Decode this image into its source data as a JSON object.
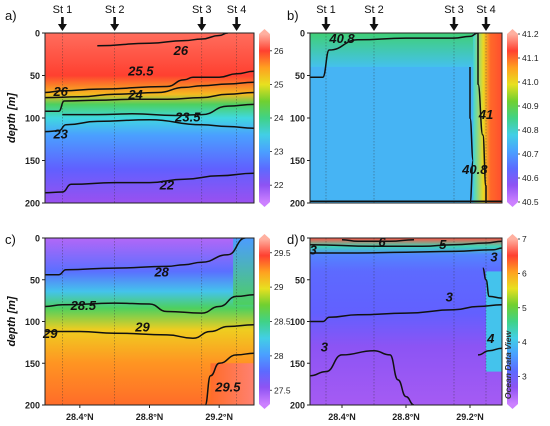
{
  "figure": {
    "watermark": "Ocean Data View",
    "colors": {
      "frame": "#222222",
      "station_line": "#333333",
      "contour": "#111111"
    }
  },
  "chart_data": [
    {
      "id": "a",
      "type": "heatmap",
      "panel_label": "a)",
      "ylabel": "depth [m]",
      "ylim": [
        200,
        0
      ],
      "yticks": [
        0,
        50,
        100,
        150,
        200
      ],
      "xlim": [
        28.2,
        29.4
      ],
      "xticks": [],
      "stations": [
        {
          "name": "St 1",
          "lat": 28.3
        },
        {
          "name": "St 2",
          "lat": 28.6
        },
        {
          "name": "St 3",
          "lat": 29.1
        },
        {
          "name": "St 4",
          "lat": 29.3
        }
      ],
      "colorbar": {
        "min": 21.5,
        "max": 26.5,
        "ticks": [
          22,
          23,
          24,
          25,
          26
        ]
      },
      "contours": [
        {
          "level": 26,
          "label": "26",
          "points": [
            [
              28.2,
              70
            ],
            [
              28.3,
              68
            ],
            [
              28.5,
              66
            ],
            [
              28.9,
              63
            ],
            [
              29.0,
              55
            ],
            [
              29.05,
              52
            ],
            [
              29.2,
              52
            ],
            [
              29.3,
              48
            ],
            [
              29.4,
              45
            ]
          ]
        },
        {
          "level": 26,
          "label": "",
          "points": [
            [
              28.5,
              15
            ],
            [
              28.8,
              12
            ],
            [
              29.0,
              9
            ],
            [
              29.1,
              7
            ],
            [
              29.2,
              3
            ],
            [
              29.25,
              0
            ]
          ]
        },
        {
          "level": 25.5,
          "label": "25.5",
          "points": [
            [
              28.2,
              76
            ],
            [
              28.4,
              75
            ],
            [
              28.6,
              72
            ],
            [
              28.85,
              70
            ],
            [
              29.0,
              64
            ],
            [
              29.1,
              62
            ],
            [
              29.25,
              60
            ],
            [
              29.4,
              58
            ]
          ]
        },
        {
          "level": 24,
          "label": "24",
          "points": [
            [
              28.2,
              92
            ],
            [
              28.28,
              92
            ],
            [
              28.31,
              80
            ],
            [
              28.5,
              79
            ],
            [
              28.7,
              78
            ],
            [
              28.9,
              78
            ],
            [
              29.1,
              76
            ],
            [
              29.25,
              72
            ],
            [
              29.4,
              70
            ]
          ]
        },
        {
          "level": 23.5,
          "label": "23.5",
          "points": [
            [
              28.3,
              96
            ],
            [
              28.5,
              96
            ],
            [
              28.7,
              95
            ],
            [
              28.95,
              97
            ],
            [
              29.1,
              96
            ],
            [
              29.25,
              86
            ],
            [
              29.4,
              84
            ]
          ]
        },
        {
          "level": 23,
          "label": "23",
          "points": [
            [
              28.2,
              116
            ],
            [
              28.28,
              115
            ],
            [
              28.32,
              108
            ],
            [
              28.5,
              104
            ],
            [
              28.8,
              102
            ],
            [
              29.1,
              108
            ],
            [
              29.25,
              110
            ],
            [
              29.4,
              112
            ]
          ]
        },
        {
          "level": 22,
          "label": "22",
          "points": [
            [
              28.2,
              188
            ],
            [
              28.3,
              187
            ],
            [
              28.35,
              178
            ],
            [
              28.6,
              176
            ],
            [
              28.8,
              176
            ],
            [
              29.0,
              172
            ],
            [
              29.2,
              168
            ],
            [
              29.4,
              165
            ]
          ]
        }
      ],
      "labels": [
        {
          "text": "26",
          "lat": 28.98,
          "depth": 20
        },
        {
          "text": "25.5",
          "lat": 28.75,
          "depth": 44
        },
        {
          "text": "26",
          "lat": 28.29,
          "depth": 68
        },
        {
          "text": "24",
          "lat": 28.72,
          "depth": 72
        },
        {
          "text": "23.5",
          "lat": 29.02,
          "depth": 98
        },
        {
          "text": "23",
          "lat": 28.29,
          "depth": 118
        },
        {
          "text": "22",
          "lat": 28.9,
          "depth": 178
        }
      ]
    },
    {
      "id": "b",
      "type": "heatmap",
      "panel_label": "b)",
      "ylabel": "",
      "ylim": [
        200,
        0
      ],
      "yticks": [
        0,
        50,
        100,
        150,
        200
      ],
      "xlim": [
        28.2,
        29.4
      ],
      "xticks": [],
      "stations": [
        {
          "name": "St 1",
          "lat": 28.3
        },
        {
          "name": "St 2",
          "lat": 28.6
        },
        {
          "name": "St 3",
          "lat": 29.1
        },
        {
          "name": "St 4",
          "lat": 29.3
        }
      ],
      "colorbar": {
        "min": 40.5,
        "max": 41.2,
        "ticks": [
          40.5,
          40.6,
          40.7,
          40.8,
          40.9,
          41.0,
          41.1,
          41.2
        ]
      },
      "contours": [
        {
          "level": 40.8,
          "label": "40.8",
          "points": [
            [
              28.2,
              52
            ],
            [
              28.28,
              52
            ],
            [
              28.32,
              20
            ],
            [
              28.5,
              8
            ],
            [
              28.8,
              6
            ],
            [
              29.1,
              6
            ],
            [
              29.2,
              4
            ],
            [
              29.25,
              0
            ]
          ]
        },
        {
          "level": 41,
          "label": "41",
          "points": [
            [
              29.25,
              0
            ],
            [
              29.25,
              60
            ],
            [
              29.28,
              120
            ],
            [
              29.3,
              180
            ],
            [
              29.3,
              200
            ]
          ]
        },
        {
          "level": 40.8,
          "label": "40.8",
          "points": [
            [
              29.2,
              40
            ],
            [
              29.2,
              100
            ],
            [
              29.22,
              150
            ],
            [
              29.2,
              200
            ]
          ]
        },
        {
          "level": 40.8,
          "label": "",
          "points": [
            [
              28.2,
              198
            ],
            [
              29.4,
              198
            ]
          ]
        }
      ],
      "labels": [
        {
          "text": "40.8",
          "lat": 28.4,
          "depth": 6
        },
        {
          "text": "41",
          "lat": 29.3,
          "depth": 95
        },
        {
          "text": "40.8",
          "lat": 29.23,
          "depth": 160
        }
      ]
    },
    {
      "id": "c",
      "type": "heatmap",
      "panel_label": "c)",
      "ylabel": "depth [m]",
      "ylim": [
        200,
        0
      ],
      "yticks": [
        0,
        50,
        100,
        150,
        200
      ],
      "xlim": [
        28.2,
        29.4
      ],
      "xticks": [
        "28.4°N",
        "28.8°N",
        "29.2°N"
      ],
      "xtick_values": [
        28.4,
        28.8,
        29.2
      ],
      "stations": [],
      "colorbar": {
        "min": 27.3,
        "max": 29.7,
        "ticks": [
          27.5,
          28,
          28.5,
          29,
          29.5
        ]
      },
      "contours": [
        {
          "level": 28,
          "label": "28",
          "points": [
            [
              28.2,
              44
            ],
            [
              28.28,
              44
            ],
            [
              28.32,
              38
            ],
            [
              28.6,
              36
            ],
            [
              28.9,
              34
            ],
            [
              29.0,
              32
            ],
            [
              29.1,
              29
            ],
            [
              29.25,
              20
            ],
            [
              29.35,
              0
            ]
          ]
        },
        {
          "level": 28.5,
          "label": "28.5",
          "points": [
            [
              28.2,
              82
            ],
            [
              28.3,
              80
            ],
            [
              28.6,
              78
            ],
            [
              28.8,
              79
            ],
            [
              28.9,
              88
            ],
            [
              29.1,
              90
            ],
            [
              29.2,
              82
            ],
            [
              29.3,
              70
            ],
            [
              29.4,
              68
            ]
          ]
        },
        {
          "level": 29,
          "label": "29",
          "points": [
            [
              28.2,
              112
            ],
            [
              28.4,
              112
            ],
            [
              28.6,
              114
            ],
            [
              28.9,
              116
            ],
            [
              29.05,
              120
            ],
            [
              29.15,
              112
            ],
            [
              29.25,
              106
            ],
            [
              29.4,
              104
            ]
          ]
        },
        {
          "level": 29.5,
          "label": "29.5",
          "points": [
            [
              29.12,
              200
            ],
            [
              29.15,
              165
            ],
            [
              29.2,
              150
            ],
            [
              29.3,
              140
            ],
            [
              29.4,
              138
            ]
          ]
        }
      ],
      "labels": [
        {
          "text": "28",
          "lat": 28.87,
          "depth": 40
        },
        {
          "text": "28.5",
          "lat": 28.42,
          "depth": 80
        },
        {
          "text": "29",
          "lat": 28.23,
          "depth": 114
        },
        {
          "text": "29",
          "lat": 28.76,
          "depth": 106
        },
        {
          "text": "29.5",
          "lat": 29.25,
          "depth": 178
        }
      ]
    },
    {
      "id": "d",
      "type": "heatmap",
      "panel_label": "d)",
      "ylabel": "",
      "ylim": [
        200,
        0
      ],
      "yticks": [
        0,
        50,
        100,
        150,
        200
      ],
      "xlim": [
        28.2,
        29.4
      ],
      "xticks": [
        "28.4°N",
        "28.8°N",
        "29.2°N"
      ],
      "xtick_values": [
        28.4,
        28.8,
        29.2
      ],
      "stations": [],
      "colorbar": {
        "min": 2.2,
        "max": 7,
        "ticks": [
          3,
          4,
          5,
          6,
          7
        ]
      },
      "contours": [
        {
          "level": 6,
          "label": "6",
          "points": [
            [
              28.4,
              2
            ],
            [
              28.5,
              4
            ],
            [
              28.7,
              4
            ],
            [
              28.85,
              2
            ]
          ]
        },
        {
          "level": 5,
          "label": "5",
          "points": [
            [
              28.2,
              8
            ],
            [
              28.6,
              10
            ],
            [
              28.9,
              10
            ],
            [
              29.1,
              8
            ],
            [
              29.3,
              6
            ],
            [
              29.4,
              4
            ]
          ]
        },
        {
          "level": 3,
          "label": "3",
          "points": [
            [
              28.2,
              18
            ],
            [
              28.5,
              18
            ],
            [
              28.8,
              17
            ],
            [
              29.1,
              16
            ],
            [
              29.35,
              14
            ],
            [
              29.4,
              12
            ]
          ]
        },
        {
          "level": 3,
          "label": "",
          "points": [
            [
              28.2,
              100
            ],
            [
              28.28,
              100
            ],
            [
              28.32,
              95
            ],
            [
              28.5,
              92
            ],
            [
              28.8,
              90
            ],
            [
              29.1,
              86
            ],
            [
              29.25,
              82
            ],
            [
              29.4,
              80
            ]
          ]
        },
        {
          "level": 3,
          "label": "",
          "points": [
            [
              28.2,
              165
            ],
            [
              28.3,
              160
            ],
            [
              28.4,
              140
            ],
            [
              28.6,
              135
            ],
            [
              28.7,
              140
            ],
            [
              28.75,
              170
            ],
            [
              28.8,
              190
            ],
            [
              28.85,
              200
            ]
          ]
        },
        {
          "level": 4,
          "label": "4",
          "points": [
            [
              29.25,
              140
            ],
            [
              29.32,
              135
            ],
            [
              29.4,
              132
            ]
          ]
        },
        {
          "level": 4,
          "label": "",
          "points": [
            [
              29.28,
              36
            ],
            [
              29.3,
              50
            ],
            [
              29.32,
              70
            ],
            [
              29.4,
              72
            ]
          ]
        }
      ],
      "labels": [
        {
          "text": "6",
          "lat": 28.65,
          "depth": 4
        },
        {
          "text": "5",
          "lat": 29.03,
          "depth": 7
        },
        {
          "text": "3",
          "lat": 28.22,
          "depth": 14
        },
        {
          "text": "3",
          "lat": 29.35,
          "depth": 22
        },
        {
          "text": "3",
          "lat": 29.07,
          "depth": 70
        },
        {
          "text": "3",
          "lat": 28.29,
          "depth": 130
        },
        {
          "text": "4",
          "lat": 29.33,
          "depth": 120
        }
      ]
    }
  ]
}
